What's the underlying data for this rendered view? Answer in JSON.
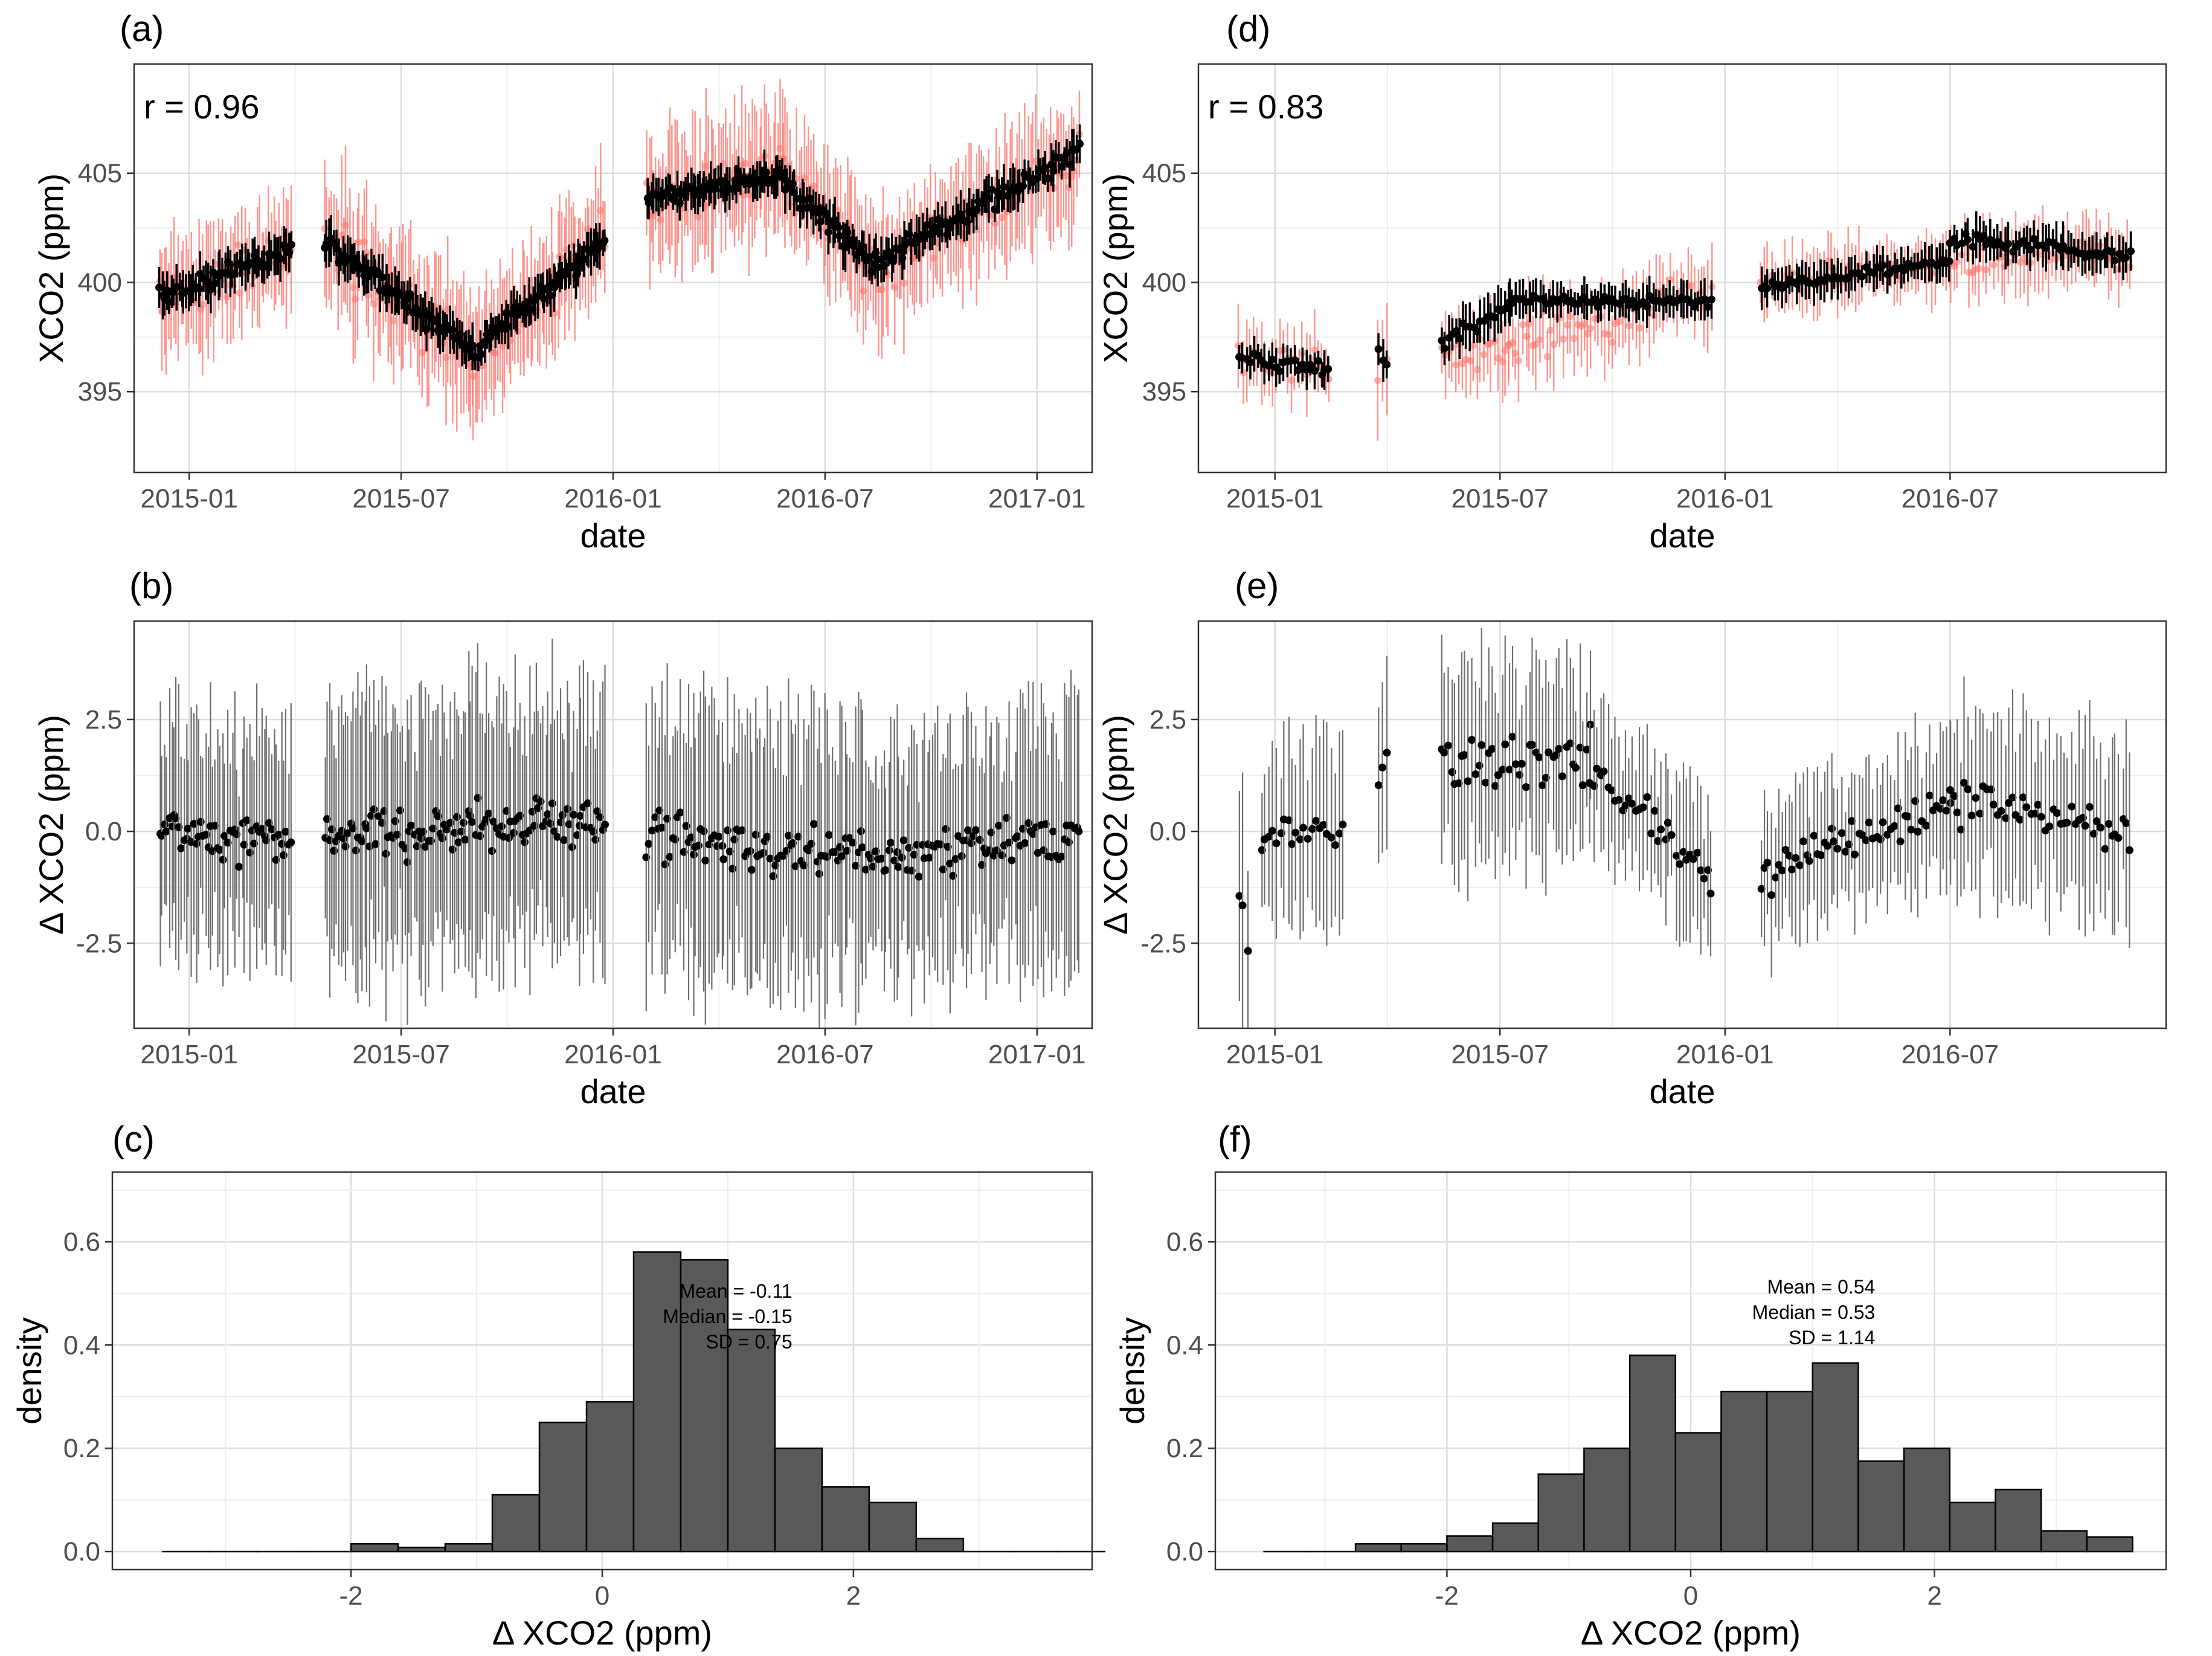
{
  "chart_data": [
    {
      "id": "a",
      "type": "scatter",
      "panel_label": "(a)",
      "annotation": "r = 0.96",
      "xlabel": "date",
      "ylabel": "XCO2 (ppm)",
      "x_ticks": [
        "2015-01",
        "2015-07",
        "2016-01",
        "2016-07",
        "2017-01"
      ],
      "y_ticks": [
        395,
        400,
        405
      ],
      "xlim": [
        2014.87,
        2017.13
      ],
      "ylim": [
        391.3,
        410.0
      ],
      "series": [
        {
          "name": "satellite (red)",
          "color": "#f8766d",
          "segments": [
            {
              "x0": 2014.93,
              "x1": 2015.24,
              "y0": 399.0,
              "y1": 401.5,
              "n": 55,
              "noise": 1.3,
              "err": 2.6
            },
            {
              "x0": 2015.32,
              "x1": 2015.67,
              "y0": 402.0,
              "y1": 396.2,
              "n": 65,
              "noise": 1.4,
              "err": 3.0
            },
            {
              "x0": 2015.67,
              "x1": 2015.98,
              "y0": 396.2,
              "y1": 402.2,
              "n": 60,
              "noise": 1.2,
              "err": 2.6
            },
            {
              "x0": 2016.08,
              "x1": 2016.4,
              "y0": 403.5,
              "y1": 405.2,
              "n": 60,
              "noise": 1.2,
              "err": 3.0
            },
            {
              "x0": 2016.4,
              "x1": 2016.62,
              "y0": 405.0,
              "y1": 400.5,
              "n": 40,
              "noise": 1.3,
              "err": 2.8
            },
            {
              "x0": 2016.62,
              "x1": 2017.1,
              "y0": 400.5,
              "y1": 405.8,
              "n": 80,
              "noise": 1.2,
              "err": 2.8
            }
          ]
        },
        {
          "name": "ground (black)",
          "color": "#000000",
          "segments": [
            {
              "x0": 2014.93,
              "x1": 2015.24,
              "y0": 399.3,
              "y1": 401.5,
              "n": 55,
              "noise": 0.5,
              "err": 0.9
            },
            {
              "x0": 2015.32,
              "x1": 2015.67,
              "y0": 401.8,
              "y1": 396.8,
              "n": 65,
              "noise": 0.5,
              "err": 0.9
            },
            {
              "x0": 2015.67,
              "x1": 2015.98,
              "y0": 396.8,
              "y1": 402.0,
              "n": 60,
              "noise": 0.5,
              "err": 0.9
            },
            {
              "x0": 2016.08,
              "x1": 2016.4,
              "y0": 403.8,
              "y1": 405.0,
              "n": 60,
              "noise": 0.4,
              "err": 0.8
            },
            {
              "x0": 2016.4,
              "x1": 2016.62,
              "y0": 404.6,
              "y1": 400.8,
              "n": 40,
              "noise": 0.5,
              "err": 0.9
            },
            {
              "x0": 2016.62,
              "x1": 2017.1,
              "y0": 400.8,
              "y1": 406.0,
              "n": 80,
              "noise": 0.5,
              "err": 0.9
            }
          ]
        }
      ]
    },
    {
      "id": "b",
      "type": "scatter",
      "panel_label": "(b)",
      "xlabel": "date",
      "ylabel": "Δ XCO2 (ppm)",
      "x_ticks": [
        "2015-01",
        "2015-07",
        "2016-01",
        "2016-07",
        "2017-01"
      ],
      "y_ticks": [
        -2.5,
        0.0,
        2.5
      ],
      "y_tick_labels": [
        "-2.5",
        "0.0",
        "2.5"
      ],
      "xlim": [
        2014.87,
        2017.13
      ],
      "ylim": [
        -4.4,
        4.7
      ],
      "series": [
        {
          "name": "difference",
          "color": "#000000",
          "err_color": "#6e6e6e",
          "segments": [
            {
              "x0": 2014.93,
              "x1": 2015.24,
              "y0": 0.1,
              "y1": -0.4,
              "n": 55,
              "noise": 0.55,
              "err": 2.6
            },
            {
              "x0": 2015.32,
              "x1": 2015.98,
              "y0": -0.2,
              "y1": 0.3,
              "n": 120,
              "noise": 0.6,
              "err": 3.0
            },
            {
              "x0": 2016.08,
              "x1": 2016.62,
              "y0": -0.2,
              "y1": -0.6,
              "n": 90,
              "noise": 0.65,
              "err": 3.0
            },
            {
              "x0": 2016.62,
              "x1": 2017.1,
              "y0": -0.6,
              "y1": 0.0,
              "n": 80,
              "noise": 0.6,
              "err": 2.8
            }
          ]
        }
      ]
    },
    {
      "id": "c",
      "type": "bar",
      "panel_label": "(c)",
      "xlabel": "Δ XCO2 (ppm)",
      "ylabel": "density",
      "x_ticks": [
        -2,
        0,
        2
      ],
      "y_ticks": [
        0.0,
        0.2,
        0.4,
        0.6
      ],
      "y_tick_labels": [
        "0.0",
        "0.2",
        "0.4",
        "0.6"
      ],
      "xlim": [
        -3.9,
        3.9
      ],
      "ylim": [
        -0.035,
        0.735
      ],
      "bins_start": -3.5,
      "bin_width": 0.375,
      "values": [
        0.0,
        0.0,
        0.0,
        0.0,
        0.015,
        0.008,
        0.015,
        0.11,
        0.25,
        0.29,
        0.58,
        0.565,
        0.43,
        0.2,
        0.125,
        0.095,
        0.025,
        0.0,
        0.0,
        0.0
      ],
      "stats": [
        "Mean = -0.11",
        "Median = -0.15",
        "SD = 0.75"
      ]
    },
    {
      "id": "d",
      "type": "scatter",
      "panel_label": "(d)",
      "annotation": "r = 0.83",
      "xlabel": "date",
      "ylabel": "XCO2 (ppm)",
      "x_ticks": [
        "2015-01",
        "2015-07",
        "2016-01",
        "2016-07"
      ],
      "y_ticks": [
        395,
        400,
        405
      ],
      "xlim": [
        2014.83,
        2016.98
      ],
      "ylim": [
        391.3,
        410.0
      ],
      "series": [
        {
          "name": "satellite (red)",
          "color": "#f8766d",
          "segments": [
            {
              "x0": 2014.92,
              "x1": 2015.12,
              "y0": 396.5,
              "y1": 396.2,
              "n": 25,
              "noise": 0.8,
              "err": 1.6
            },
            {
              "x0": 2015.23,
              "x1": 2015.25,
              "y0": 395.5,
              "y1": 396.0,
              "n": 3,
              "noise": 1.2,
              "err": 2.5
            },
            {
              "x0": 2015.37,
              "x1": 2015.52,
              "y0": 396.2,
              "y1": 397.0,
              "n": 20,
              "noise": 1.0,
              "err": 2.0
            },
            {
              "x0": 2015.52,
              "x1": 2015.97,
              "y0": 397.0,
              "y1": 399.5,
              "n": 60,
              "noise": 1.1,
              "err": 1.8
            },
            {
              "x0": 2016.08,
              "x1": 2016.5,
              "y0": 400.0,
              "y1": 400.8,
              "n": 55,
              "noise": 0.7,
              "err": 1.5
            },
            {
              "x0": 2016.5,
              "x1": 2016.9,
              "y0": 401.0,
              "y1": 401.2,
              "n": 50,
              "noise": 0.8,
              "err": 1.6
            }
          ]
        },
        {
          "name": "ground (black)",
          "color": "#000000",
          "segments": [
            {
              "x0": 2014.92,
              "x1": 2015.12,
              "y0": 396.6,
              "y1": 396.0,
              "n": 25,
              "noise": 0.35,
              "err": 0.8
            },
            {
              "x0": 2015.23,
              "x1": 2015.25,
              "y0": 397.0,
              "y1": 396.3,
              "n": 3,
              "noise": 0.4,
              "err": 0.8
            },
            {
              "x0": 2015.37,
              "x1": 2015.52,
              "y0": 397.3,
              "y1": 398.8,
              "n": 20,
              "noise": 0.4,
              "err": 0.9
            },
            {
              "x0": 2015.52,
              "x1": 2015.97,
              "y0": 399.2,
              "y1": 399.1,
              "n": 60,
              "noise": 0.3,
              "err": 0.8
            },
            {
              "x0": 2016.08,
              "x1": 2016.5,
              "y0": 399.8,
              "y1": 401.0,
              "n": 55,
              "noise": 0.3,
              "err": 0.8
            },
            {
              "x0": 2016.5,
              "x1": 2016.9,
              "y0": 402.0,
              "y1": 401.2,
              "n": 50,
              "noise": 0.4,
              "err": 0.9
            }
          ]
        }
      ]
    },
    {
      "id": "e",
      "type": "scatter",
      "panel_label": "(e)",
      "xlabel": "date",
      "ylabel": "Δ XCO2 (ppm)",
      "x_ticks": [
        "2015-01",
        "2015-07",
        "2016-01",
        "2016-07"
      ],
      "y_ticks": [
        -2.5,
        0.0,
        2.5
      ],
      "y_tick_labels": [
        "-2.5",
        "0.0",
        "2.5"
      ],
      "xlim": [
        2014.83,
        2016.98
      ],
      "ylim": [
        -4.4,
        4.7
      ],
      "series": [
        {
          "name": "difference",
          "color": "#000000",
          "err_color": "#6e6e6e",
          "segments": [
            {
              "x0": 2014.92,
              "x1": 2014.94,
              "y0": -1.5,
              "y1": -2.5,
              "n": 3,
              "noise": 0.4,
              "err": 2.4
            },
            {
              "x0": 2014.97,
              "x1": 2015.15,
              "y0": 0.0,
              "y1": 0.2,
              "n": 22,
              "noise": 0.7,
              "err": 2.2
            },
            {
              "x0": 2015.23,
              "x1": 2015.25,
              "y0": 1.0,
              "y1": 1.8,
              "n": 3,
              "noise": 0.6,
              "err": 2.5
            },
            {
              "x0": 2015.37,
              "x1": 2015.7,
              "y0": 1.5,
              "y1": 1.6,
              "n": 45,
              "noise": 0.7,
              "err": 2.2
            },
            {
              "x0": 2015.7,
              "x1": 2015.97,
              "y0": 1.4,
              "y1": -1.0,
              "n": 35,
              "noise": 0.5,
              "err": 1.6
            },
            {
              "x0": 2016.08,
              "x1": 2016.5,
              "y0": -1.0,
              "y1": 0.6,
              "n": 55,
              "noise": 0.5,
              "err": 1.6
            },
            {
              "x0": 2016.5,
              "x1": 2016.9,
              "y0": 0.8,
              "y1": 0.0,
              "n": 50,
              "noise": 0.6,
              "err": 2.0
            }
          ]
        }
      ]
    },
    {
      "id": "f",
      "type": "bar",
      "panel_label": "(f)",
      "xlabel": "Δ XCO2 (ppm)",
      "ylabel": "density",
      "x_ticks": [
        -2,
        0,
        2
      ],
      "y_ticks": [
        0.0,
        0.2,
        0.4,
        0.6
      ],
      "y_tick_labels": [
        "0.0",
        "0.2",
        "0.4",
        "0.6"
      ],
      "xlim": [
        -3.9,
        3.9
      ],
      "ylim": [
        -0.035,
        0.735
      ],
      "bins_start": -3.5,
      "bin_width": 0.375,
      "values": [
        0.0,
        0.0,
        0.015,
        0.015,
        0.03,
        0.055,
        0.15,
        0.2,
        0.38,
        0.23,
        0.31,
        0.31,
        0.365,
        0.175,
        0.2,
        0.095,
        0.12,
        0.04,
        0.028
      ],
      "stats": [
        "Mean = 0.54",
        "Median = 0.53",
        "SD = 1.14"
      ]
    }
  ]
}
